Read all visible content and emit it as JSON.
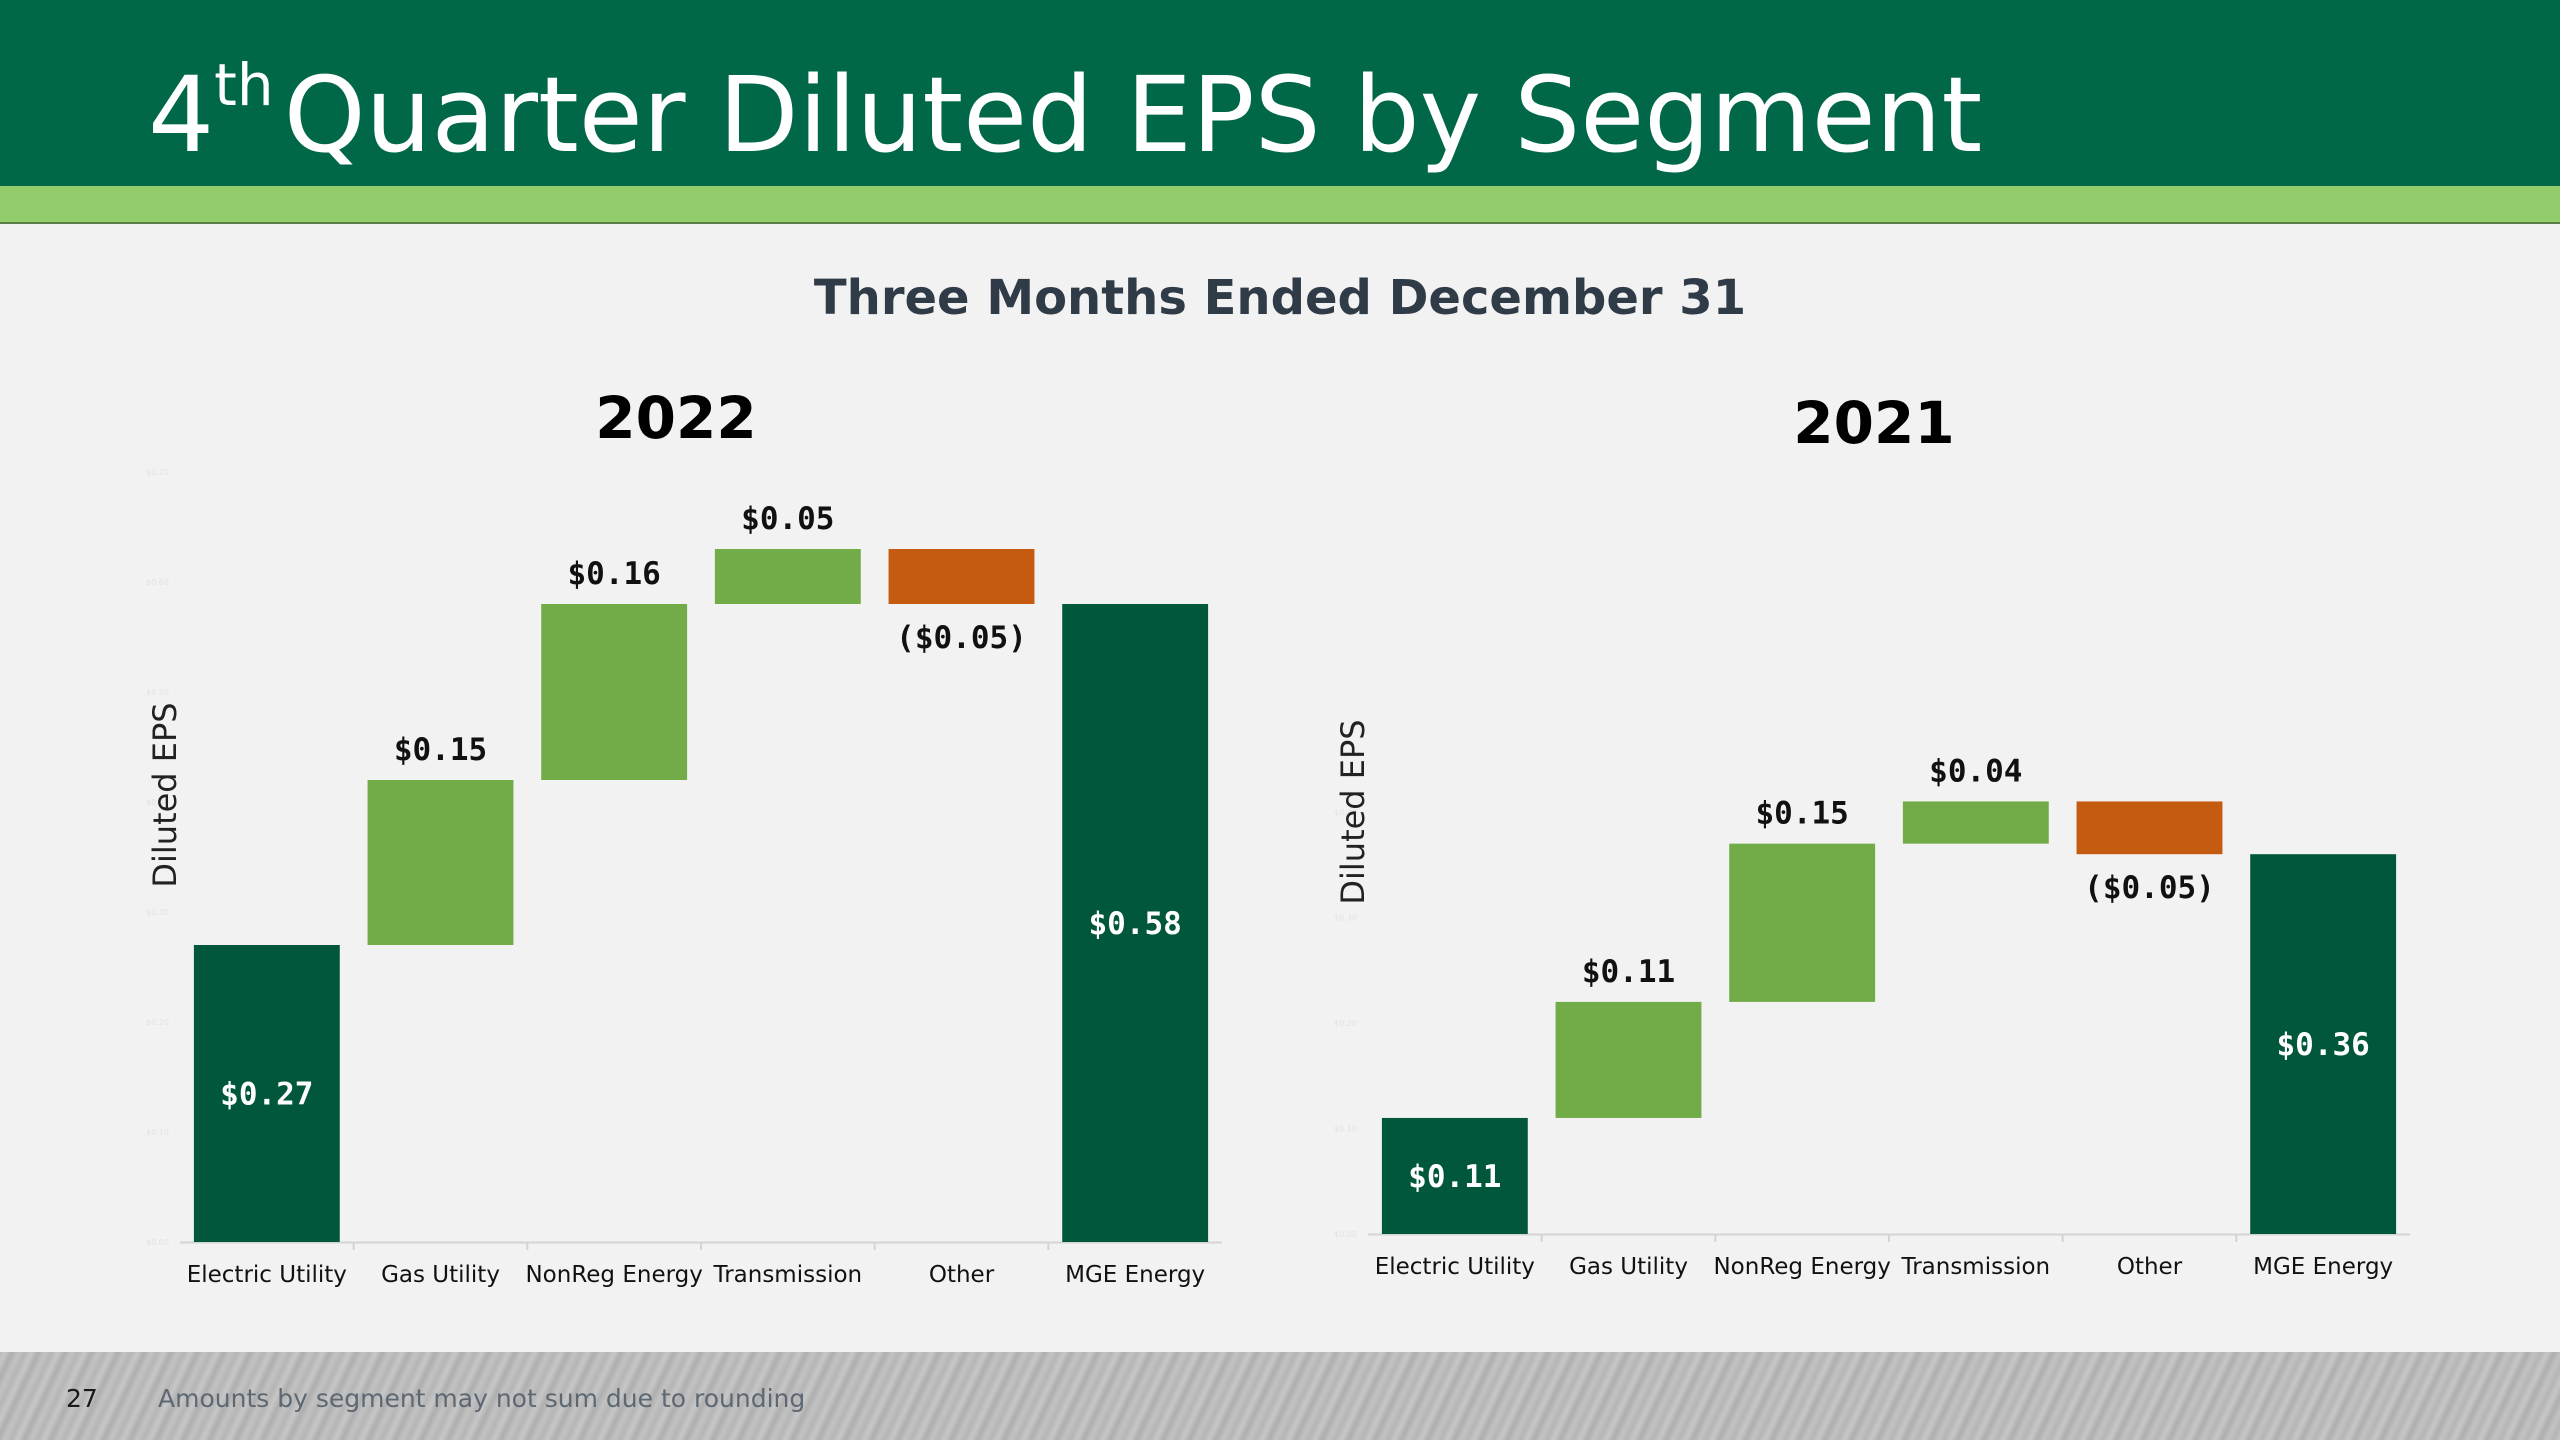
{
  "slide": {
    "title_sup": "th",
    "title_main": "Quarter Diluted EPS by Segment",
    "title_prefix": "4",
    "subtitle": "Three Months Ended December 31",
    "page_number": "27",
    "footnote": "Amounts by segment may not sum due to rounding"
  },
  "colors": {
    "total": "#00573c",
    "increase": "#72ac48",
    "decrease": "#c55a11",
    "header": "#006848",
    "stripe": "#92cc6b"
  },
  "chart_data": [
    {
      "type": "bar",
      "subtype": "waterfall",
      "title": "2022",
      "ylabel": "Diluted EPS",
      "xlabel": "",
      "ylim": [
        0,
        0.7
      ],
      "categories": [
        "Electric Utility",
        "Gas Utility",
        "NonReg Energy",
        "Transmission",
        "Other",
        "MGE Energy"
      ],
      "bars": [
        {
          "category": "Electric Utility",
          "kind": "total",
          "start": 0,
          "end": 0.27,
          "label": "$0.27"
        },
        {
          "category": "Gas Utility",
          "kind": "increase",
          "start": 0.27,
          "end": 0.42,
          "label": "$0.15"
        },
        {
          "category": "NonReg Energy",
          "kind": "increase",
          "start": 0.42,
          "end": 0.58,
          "label": "$0.16"
        },
        {
          "category": "Transmission",
          "kind": "increase",
          "start": 0.58,
          "end": 0.63,
          "label": "$0.05"
        },
        {
          "category": "Other",
          "kind": "decrease",
          "start": 0.63,
          "end": 0.58,
          "label": "($0.05)"
        },
        {
          "category": "MGE Energy",
          "kind": "total",
          "start": 0,
          "end": 0.58,
          "label": "$0.58"
        }
      ]
    },
    {
      "type": "bar",
      "subtype": "waterfall",
      "title": "2021",
      "ylabel": "Diluted EPS",
      "xlabel": "",
      "ylim": [
        0,
        0.4
      ],
      "categories": [
        "Electric Utility",
        "Gas Utility",
        "NonReg Energy",
        "Transmission",
        "Other",
        "MGE Energy"
      ],
      "bars": [
        {
          "category": "Electric Utility",
          "kind": "total",
          "start": 0,
          "end": 0.11,
          "label": "$0.11"
        },
        {
          "category": "Gas Utility",
          "kind": "increase",
          "start": 0.11,
          "end": 0.22,
          "label": "$0.11"
        },
        {
          "category": "NonReg Energy",
          "kind": "increase",
          "start": 0.22,
          "end": 0.37,
          "label": "$0.15"
        },
        {
          "category": "Transmission",
          "kind": "increase",
          "start": 0.37,
          "end": 0.41,
          "label": "$0.04"
        },
        {
          "category": "Other",
          "kind": "decrease",
          "start": 0.41,
          "end": 0.36,
          "label": "($0.05)"
        },
        {
          "category": "MGE Energy",
          "kind": "total",
          "start": 0,
          "end": 0.36,
          "label": "$0.36"
        }
      ]
    }
  ]
}
